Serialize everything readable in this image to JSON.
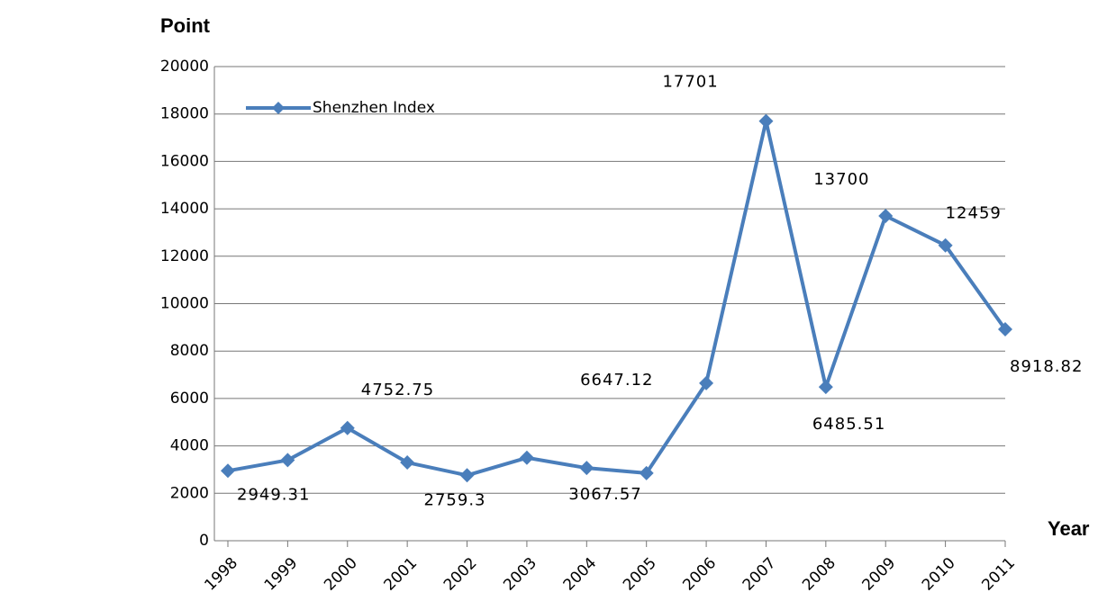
{
  "chart_data": {
    "type": "line",
    "y_label": "Point",
    "x_label": "Year",
    "categories": [
      "1998",
      "1999",
      "2000",
      "2001",
      "2002",
      "2003",
      "2004",
      "2005",
      "2006",
      "2007",
      "2008",
      "2009",
      "2010",
      "2011"
    ],
    "series": [
      {
        "name": "Shenzhen Index",
        "color": "#4a7ebb",
        "values": [
          2949.31,
          3400,
          4752.75,
          3300,
          2759.3,
          3500,
          3067.57,
          2850,
          6647.12,
          17701,
          6485.51,
          13700,
          12459,
          8918.82
        ],
        "value_labels": [
          "2949.31",
          null,
          "4752.75",
          null,
          "2759.3",
          null,
          "3067.57",
          null,
          "6647.12",
          "17701",
          "6485.51",
          "13700",
          "12459",
          "8918.82"
        ]
      }
    ],
    "ylim": [
      0,
      20000
    ],
    "yticks": [
      0,
      2000,
      4000,
      6000,
      8000,
      10000,
      12000,
      14000,
      16000,
      18000,
      20000
    ],
    "grid": true,
    "legend": "top-left"
  }
}
